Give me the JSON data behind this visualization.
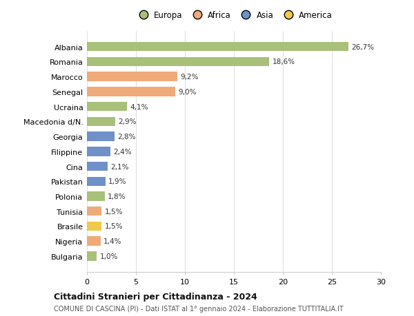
{
  "countries": [
    "Albania",
    "Romania",
    "Marocco",
    "Senegal",
    "Ucraina",
    "Macedonia d/N.",
    "Georgia",
    "Filippine",
    "Cina",
    "Pakistan",
    "Polonia",
    "Tunisia",
    "Brasile",
    "Nigeria",
    "Bulgaria"
  ],
  "values": [
    26.7,
    18.6,
    9.2,
    9.0,
    4.1,
    2.9,
    2.8,
    2.4,
    2.1,
    1.9,
    1.8,
    1.5,
    1.5,
    1.4,
    1.0
  ],
  "labels": [
    "26,7%",
    "18,6%",
    "9,2%",
    "9,0%",
    "4,1%",
    "2,9%",
    "2,8%",
    "2,4%",
    "2,1%",
    "1,9%",
    "1,8%",
    "1,5%",
    "1,5%",
    "1,4%",
    "1,0%"
  ],
  "continents": [
    "Europa",
    "Europa",
    "Africa",
    "Africa",
    "Europa",
    "Europa",
    "Asia",
    "Asia",
    "Asia",
    "Asia",
    "Europa",
    "Africa",
    "America",
    "Africa",
    "Europa"
  ],
  "colors": {
    "Europa": "#a8c07a",
    "Africa": "#f0aa7a",
    "Asia": "#7090c8",
    "America": "#f0c84a"
  },
  "xlim": [
    0,
    30
  ],
  "xticks": [
    0,
    5,
    10,
    15,
    20,
    25,
    30
  ],
  "title": "Cittadini Stranieri per Cittadinanza - 2024",
  "subtitle": "COMUNE DI CASCINA (PI) - Dati ISTAT al 1° gennaio 2024 - Elaborazione TUTTITALIA.IT",
  "background_color": "#ffffff",
  "grid_color": "#e0e0e0",
  "legend_order": [
    "Europa",
    "Africa",
    "Asia",
    "America"
  ]
}
